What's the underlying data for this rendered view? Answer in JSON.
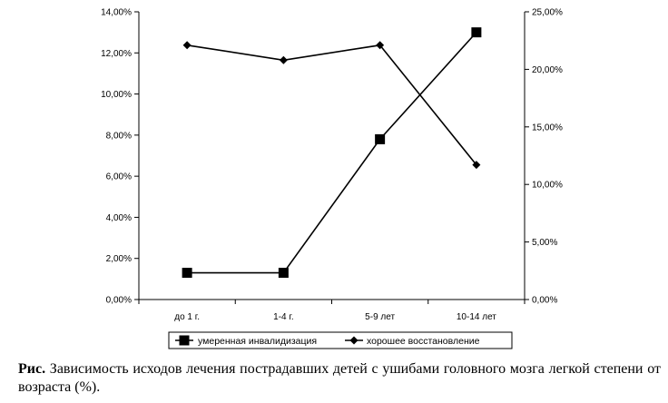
{
  "chart_data": {
    "type": "line",
    "categories": [
      "до 1 г.",
      "1-4 г.",
      "5-9 лет",
      "10-14 лет"
    ],
    "series": [
      {
        "name": "умеренная инвалидизация",
        "axis": "left",
        "marker": "square",
        "values": [
          1.3,
          1.3,
          7.8,
          13.0
        ]
      },
      {
        "name": "хорошее восстановление",
        "axis": "right",
        "marker": "diamond",
        "values": [
          22.1,
          20.8,
          22.1,
          11.7
        ]
      }
    ],
    "y_left": {
      "ylim": [
        0,
        14
      ],
      "ticks": [
        "0,00%",
        "2,00%",
        "4,00%",
        "6,00%",
        "8,00%",
        "10,00%",
        "12,00%",
        "14,00%"
      ]
    },
    "y_right": {
      "ylim": [
        0,
        25
      ],
      "ticks": [
        "0,00%",
        "5,00%",
        "10,00%",
        "15,00%",
        "20,00%",
        "25,00%"
      ]
    },
    "grid": false,
    "legend": "bottom"
  },
  "caption": {
    "label": "Рис.",
    "text": " Зависимость исходов лечения пострадавших детей с ушибами головного мозга легкой степени от возраста (%)."
  }
}
